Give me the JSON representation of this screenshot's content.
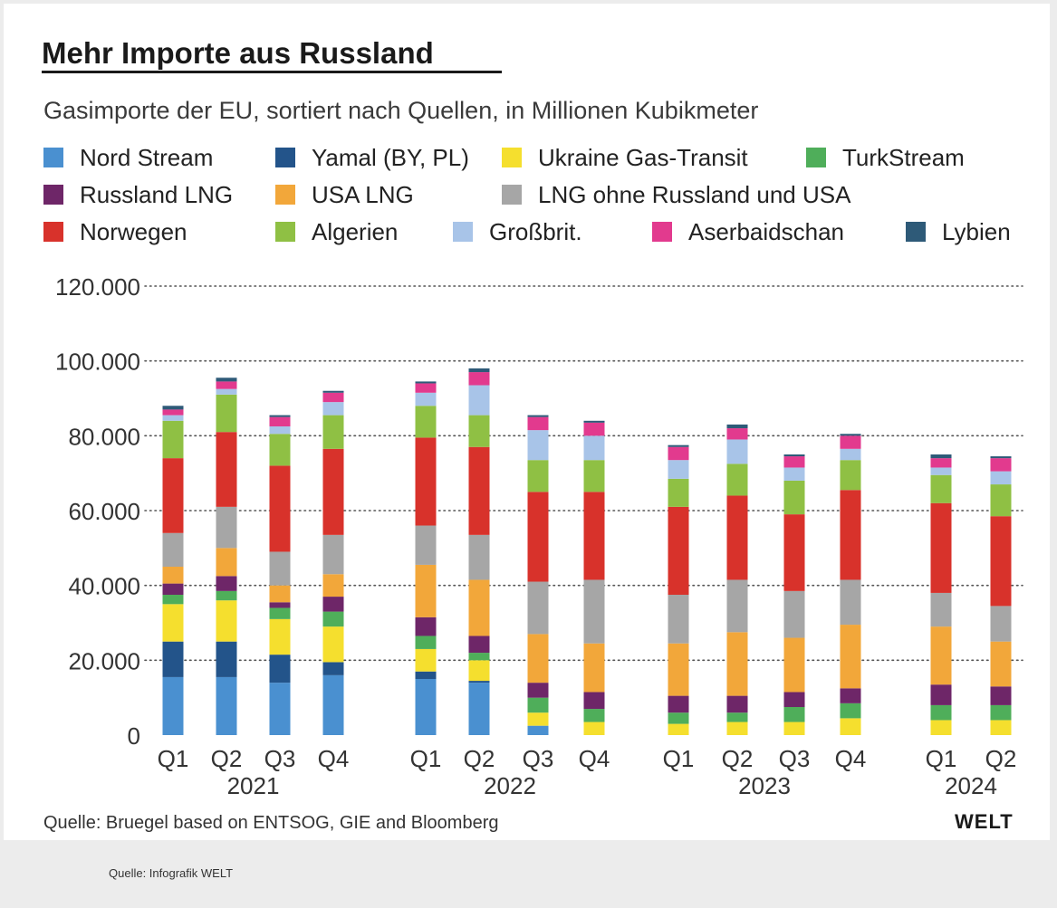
{
  "title": "Mehr Importe aus Russland",
  "subtitle": "Gasimporte der EU, sortiert nach Quellen, in Millionen Kubikmeter",
  "source": "Quelle: Bruegel based on ENTSOG, GIE and Bloomberg",
  "logo": "WELT",
  "credit": "Quelle: Infografik WELT",
  "legend": [
    {
      "label": "Nord Stream",
      "color": "#4a90d0"
    },
    {
      "label": "Yamal (BY, PL)",
      "color": "#23548a"
    },
    {
      "label": "Ukraine Gas-Transit",
      "color": "#f5df2e"
    },
    {
      "label": "TurkStream",
      "color": "#4fae5a"
    },
    {
      "label": "Russland LNG",
      "color": "#6e2668"
    },
    {
      "label": "USA LNG",
      "color": "#f2a73a"
    },
    {
      "label": "LNG ohne Russland und USA",
      "color": "#a6a6a6"
    },
    {
      "label": "Norwegen",
      "color": "#d8322b"
    },
    {
      "label": "Algerien",
      "color": "#8fc044"
    },
    {
      "label": "Großbrit.",
      "color": "#a8c4e8"
    },
    {
      "label": "Aserbaidschan",
      "color": "#e23a8e"
    },
    {
      "label": "Lybien",
      "color": "#2e5a78"
    }
  ],
  "chart_data": {
    "type": "bar",
    "stacked": true,
    "categories": [
      "Q1",
      "Q2",
      "Q3",
      "Q4",
      "Q1",
      "Q2",
      "Q3",
      "Q4",
      "Q1",
      "Q2",
      "Q3",
      "Q4",
      "Q1",
      "Q2"
    ],
    "groups": [
      {
        "label": "2021",
        "quarters": 4
      },
      {
        "label": "2022",
        "quarters": 4
      },
      {
        "label": "2023",
        "quarters": 4
      },
      {
        "label": "2024",
        "quarters": 2
      }
    ],
    "yticks": [
      "0",
      "20.000",
      "40.000",
      "60.000",
      "80.000",
      "100.000",
      "120.000"
    ],
    "ylim": [
      0,
      120000
    ],
    "grid": true,
    "legend_position": "top",
    "series": [
      {
        "name": "Nord Stream",
        "values": [
          15500,
          15500,
          14000,
          16000,
          15000,
          14000,
          2500,
          0,
          0,
          0,
          0,
          0,
          0,
          0
        ]
      },
      {
        "name": "Yamal (BY, PL)",
        "values": [
          9500,
          9500,
          7500,
          3500,
          2000,
          500,
          0,
          0,
          0,
          0,
          0,
          0,
          0,
          0
        ]
      },
      {
        "name": "Ukraine Gas-Transit",
        "values": [
          10000,
          11000,
          9500,
          9500,
          6000,
          5500,
          3500,
          3500,
          3000,
          3500,
          3500,
          4500,
          4000,
          4000
        ]
      },
      {
        "name": "TurkStream",
        "values": [
          2500,
          2500,
          3000,
          4000,
          3500,
          2000,
          4000,
          3500,
          3000,
          2500,
          4000,
          4000,
          4000,
          4000
        ]
      },
      {
        "name": "Russland LNG",
        "values": [
          3000,
          4000,
          1500,
          4000,
          5000,
          4500,
          4000,
          4500,
          4500,
          4500,
          4000,
          4000,
          5500,
          5000
        ]
      },
      {
        "name": "USA LNG",
        "values": [
          4500,
          7500,
          4500,
          6000,
          14000,
          15000,
          13000,
          13000,
          14000,
          17000,
          14500,
          17000,
          15500,
          12000
        ]
      },
      {
        "name": "LNG ohne Russland und USA",
        "values": [
          9000,
          11000,
          9000,
          10500,
          10500,
          12000,
          14000,
          17000,
          13000,
          14000,
          12500,
          12000,
          9000,
          9500
        ]
      },
      {
        "name": "Norwegen",
        "values": [
          20000,
          20000,
          23000,
          23000,
          23500,
          23500,
          24000,
          23500,
          23500,
          22500,
          20500,
          24000,
          24000,
          24000
        ]
      },
      {
        "name": "Algerien",
        "values": [
          10000,
          10000,
          8500,
          9000,
          8500,
          8500,
          8500,
          8500,
          7500,
          8500,
          9000,
          8000,
          7500,
          8500
        ]
      },
      {
        "name": "Großbrit.",
        "values": [
          1500,
          1500,
          2000,
          3500,
          3500,
          8000,
          8000,
          6500,
          5000,
          6500,
          3500,
          3000,
          2000,
          3500
        ]
      },
      {
        "name": "Aserbaidschan",
        "values": [
          1500,
          2000,
          2500,
          2500,
          2500,
          3500,
          3500,
          3500,
          3500,
          3000,
          3000,
          3500,
          2500,
          3500
        ]
      },
      {
        "name": "Lybien",
        "values": [
          1000,
          1000,
          500,
          500,
          500,
          1000,
          500,
          500,
          500,
          1000,
          500,
          500,
          1000,
          500
        ]
      }
    ]
  }
}
